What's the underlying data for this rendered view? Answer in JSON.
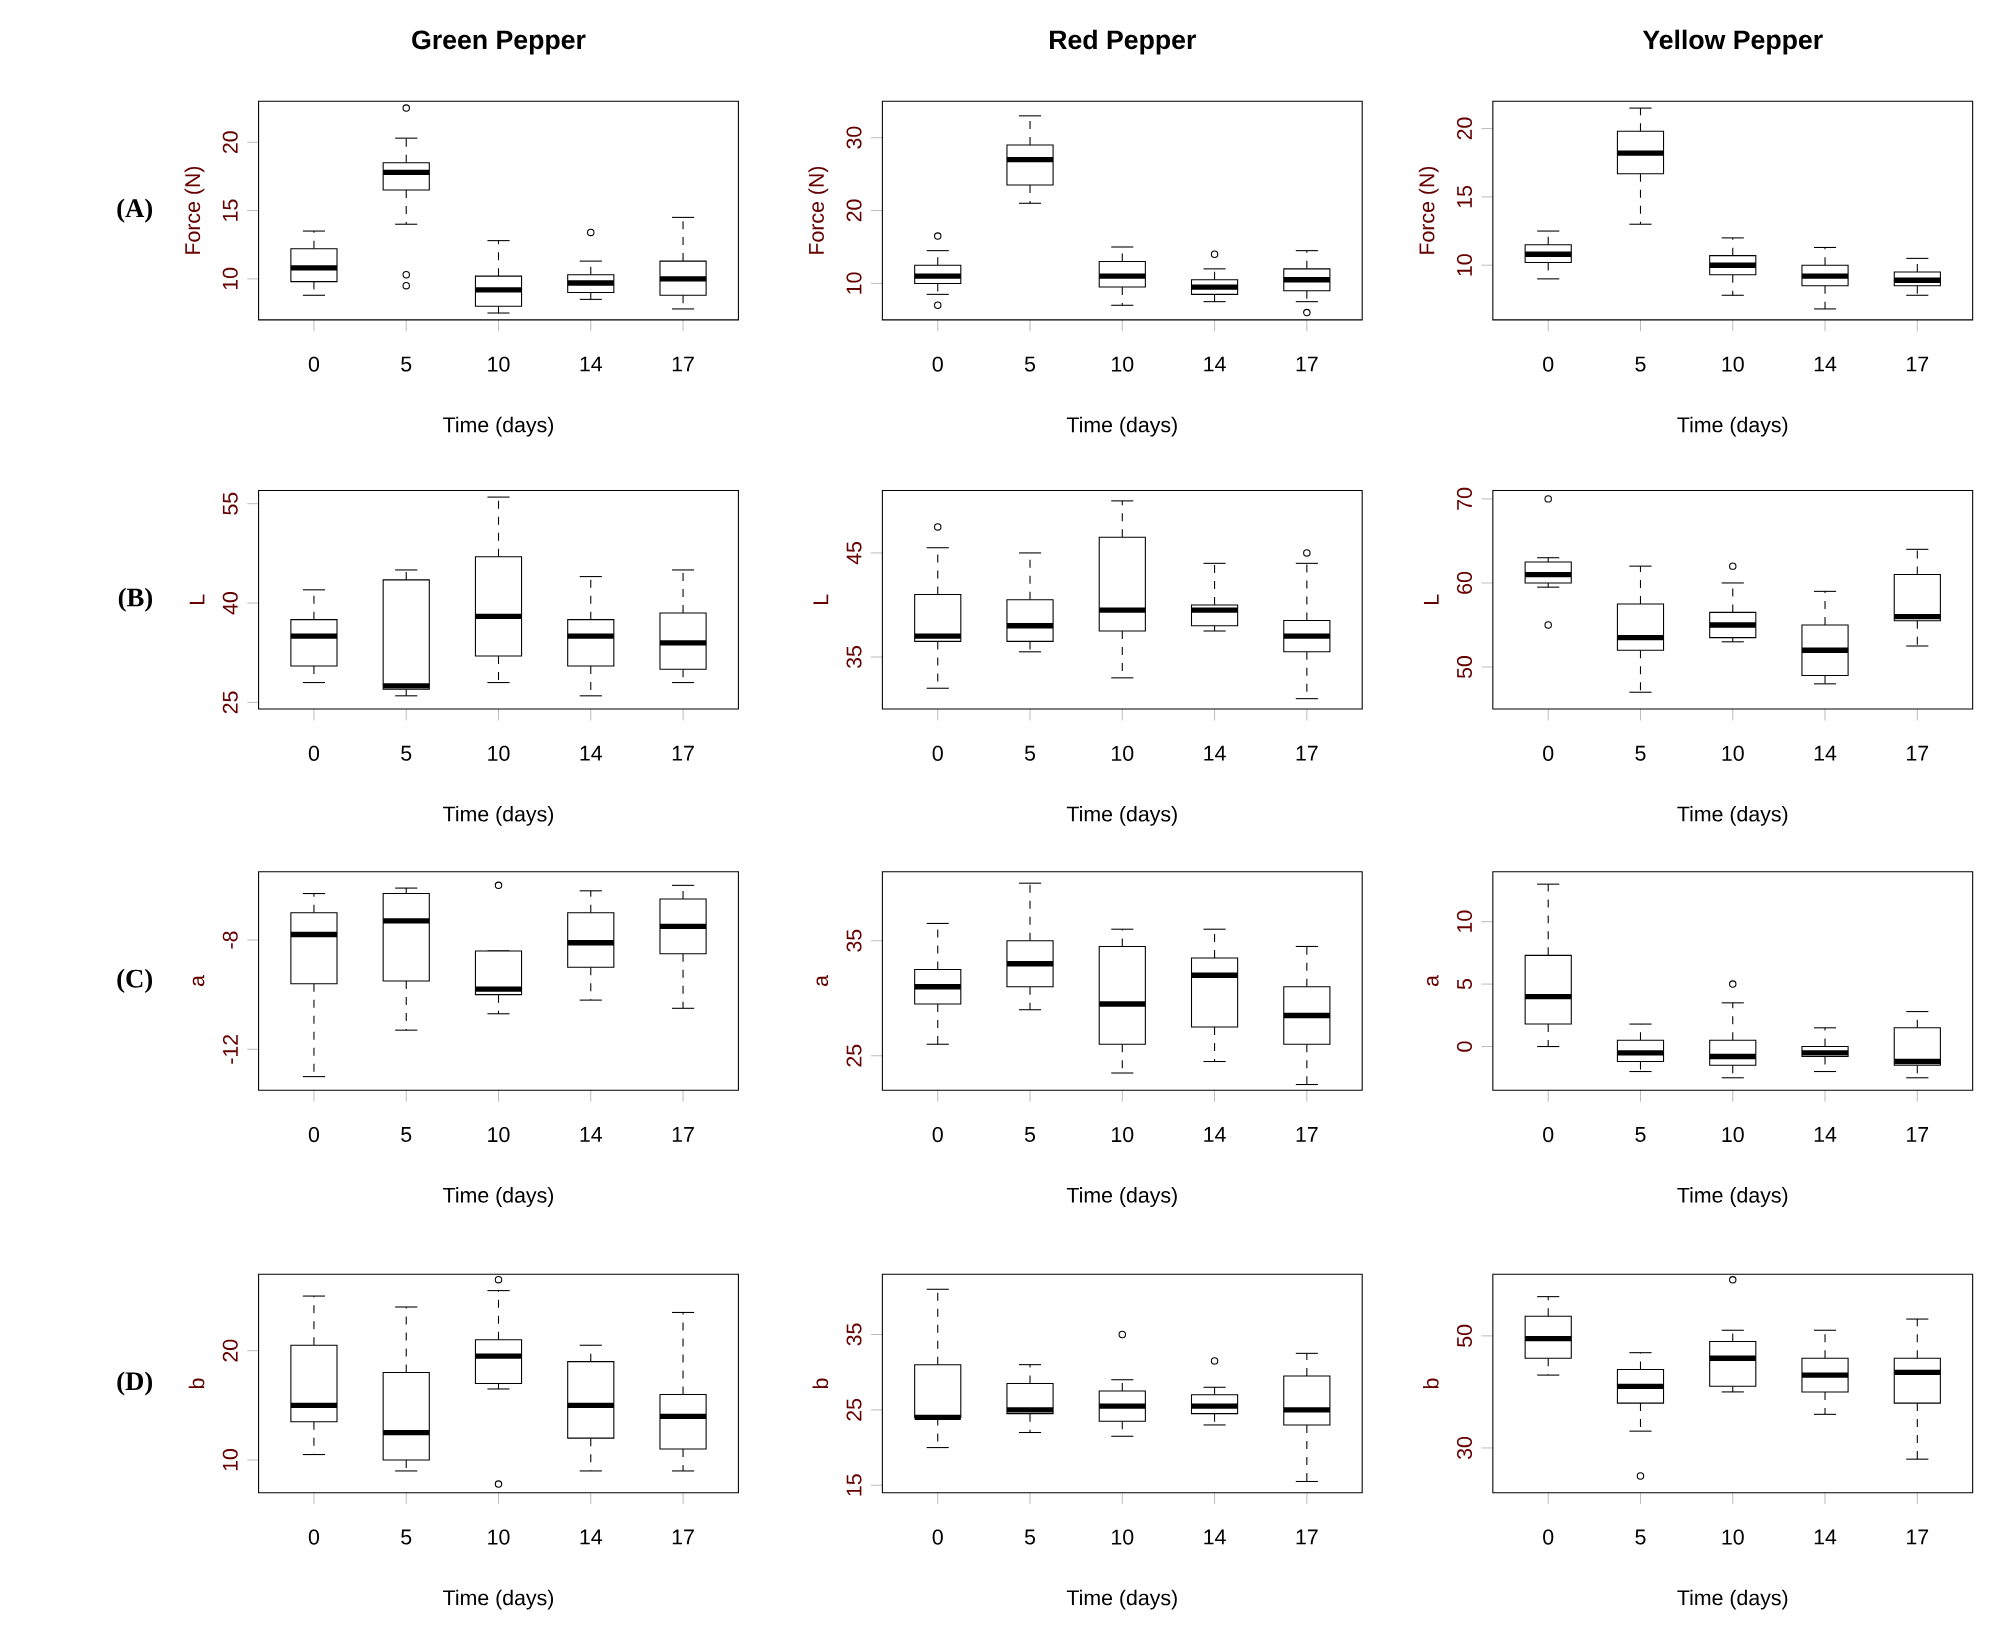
{
  "chart_data": [
    {
      "type": "box",
      "title": "Green Pepper",
      "ylabel": "Force (N)",
      "xlabel": "Time (days)",
      "annotations": [
        "(A)"
      ],
      "categories": [
        "0",
        "5",
        "10",
        "14",
        "17"
      ],
      "ylim": [
        7,
        23
      ],
      "yticks": [
        10,
        15,
        20
      ],
      "boxes": [
        {
          "low": 8.8,
          "q1": 9.8,
          "median": 10.8,
          "q3": 12.2,
          "high": 13.5
        },
        {
          "low": 14,
          "q1": 16.5,
          "median": 17.8,
          "q3": 18.5,
          "high": 20.3,
          "outliers": [
            22.5,
            10.3,
            9.5
          ]
        },
        {
          "low": 7.5,
          "q1": 8,
          "median": 9.2,
          "q3": 10.2,
          "high": 12.8
        },
        {
          "low": 8.5,
          "q1": 9,
          "median": 9.7,
          "q3": 10.3,
          "high": 11.3,
          "outliers": [
            13.4
          ]
        },
        {
          "low": 7.8,
          "q1": 8.8,
          "median": 10,
          "q3": 11.3,
          "high": 14.5
        }
      ]
    },
    {
      "type": "box",
      "title": "Red Pepper",
      "ylabel": "Force (N)",
      "xlabel": "Time (days)",
      "categories": [
        "0",
        "5",
        "10",
        "14",
        "17"
      ],
      "ylim": [
        5,
        35
      ],
      "yticks": [
        10,
        20,
        30
      ],
      "boxes": [
        {
          "low": 8.5,
          "q1": 10,
          "median": 11,
          "q3": 12.5,
          "high": 14.5,
          "outliers": [
            16.5,
            7
          ]
        },
        {
          "low": 21,
          "q1": 23.5,
          "median": 27,
          "q3": 29,
          "high": 33
        },
        {
          "low": 7,
          "q1": 9.5,
          "median": 11,
          "q3": 13,
          "high": 15
        },
        {
          "low": 7.5,
          "q1": 8.5,
          "median": 9.5,
          "q3": 10.5,
          "high": 12,
          "outliers": [
            14
          ]
        },
        {
          "low": 7.5,
          "q1": 9,
          "median": 10.5,
          "q3": 12,
          "high": 14.5,
          "outliers": [
            6
          ]
        }
      ]
    },
    {
      "type": "box",
      "title": "Yellow Pepper",
      "ylabel": "Force (N)",
      "xlabel": "Time (days)",
      "categories": [
        "0",
        "5",
        "10",
        "14",
        "17"
      ],
      "ylim": [
        6,
        22
      ],
      "yticks": [
        10,
        15,
        20
      ],
      "boxes": [
        {
          "low": 9,
          "q1": 10.2,
          "median": 10.8,
          "q3": 11.5,
          "high": 12.5
        },
        {
          "low": 13,
          "q1": 16.7,
          "median": 18.2,
          "q3": 19.8,
          "high": 21.5
        },
        {
          "low": 7.8,
          "q1": 9.3,
          "median": 10,
          "q3": 10.7,
          "high": 12
        },
        {
          "low": 6.8,
          "q1": 8.5,
          "median": 9.2,
          "q3": 10,
          "high": 11.3
        },
        {
          "low": 7.8,
          "q1": 8.5,
          "median": 8.9,
          "q3": 9.5,
          "high": 10.5
        }
      ]
    },
    {
      "type": "box",
      "ylabel": "L",
      "xlabel": "Time (days)",
      "annotations": [
        "(B)"
      ],
      "categories": [
        "0",
        "5",
        "10",
        "14",
        "17"
      ],
      "ylim": [
        24,
        57
      ],
      "yticks": [
        25,
        40,
        55
      ],
      "boxes": [
        {
          "low": 28,
          "q1": 30.5,
          "median": 35,
          "q3": 37.5,
          "high": 42
        },
        {
          "low": 26,
          "q1": 27,
          "median": 27.5,
          "q3": 43.5,
          "high": 45
        },
        {
          "low": 28,
          "q1": 32,
          "median": 38,
          "q3": 47,
          "high": 56
        },
        {
          "low": 26,
          "q1": 30.5,
          "median": 35,
          "q3": 37.5,
          "high": 44
        },
        {
          "low": 28,
          "q1": 30,
          "median": 34,
          "q3": 38.5,
          "high": 45
        }
      ]
    },
    {
      "type": "box",
      "ylabel": "L",
      "xlabel": "Time (days)",
      "categories": [
        "0",
        "5",
        "10",
        "14",
        "17"
      ],
      "ylim": [
        30,
        51
      ],
      "yticks": [
        35,
        45
      ],
      "boxes": [
        {
          "low": 32,
          "q1": 36.5,
          "median": 37,
          "q3": 41,
          "high": 45.5,
          "outliers": [
            47.5
          ]
        },
        {
          "low": 35.5,
          "q1": 36.5,
          "median": 38,
          "q3": 40.5,
          "high": 45
        },
        {
          "low": 33,
          "q1": 37.5,
          "median": 39.5,
          "q3": 46.5,
          "high": 50
        },
        {
          "low": 37.5,
          "q1": 38,
          "median": 39.5,
          "q3": 40,
          "high": 44
        },
        {
          "low": 31,
          "q1": 35.5,
          "median": 37,
          "q3": 38.5,
          "high": 44,
          "outliers": [
            45
          ]
        }
      ]
    },
    {
      "type": "box",
      "ylabel": "L",
      "xlabel": "Time (days)",
      "categories": [
        "0",
        "5",
        "10",
        "14",
        "17"
      ],
      "ylim": [
        45,
        71
      ],
      "yticks": [
        50,
        60,
        70
      ],
      "boxes": [
        {
          "low": 59.5,
          "q1": 60,
          "median": 61,
          "q3": 62.5,
          "high": 63,
          "outliers": [
            70,
            55
          ]
        },
        {
          "low": 47,
          "q1": 52,
          "median": 53.5,
          "q3": 57.5,
          "high": 62
        },
        {
          "low": 53,
          "q1": 53.5,
          "median": 55,
          "q3": 56.5,
          "high": 60,
          "outliers": [
            62
          ]
        },
        {
          "low": 48,
          "q1": 49,
          "median": 52,
          "q3": 55,
          "high": 59
        },
        {
          "low": 52.5,
          "q1": 55.5,
          "median": 56,
          "q3": 61,
          "high": 64
        }
      ]
    },
    {
      "type": "box",
      "ylabel": "a",
      "xlabel": "Time (days)",
      "annotations": [
        "(C)"
      ],
      "categories": [
        "0",
        "5",
        "10",
        "14",
        "17"
      ],
      "ylim": [
        -13.5,
        -5.5
      ],
      "yticks": [
        -12,
        -8
      ],
      "boxes": [
        {
          "low": -13,
          "q1": -9.6,
          "median": -7.8,
          "q3": -7,
          "high": -6.3
        },
        {
          "low": -11.3,
          "q1": -9.5,
          "median": -7.3,
          "q3": -6.3,
          "high": -6.1
        },
        {
          "low": -10.7,
          "q1": -10,
          "median": -9.8,
          "q3": -8.4,
          "high": -8.4,
          "outliers": [
            -6
          ]
        },
        {
          "low": -10.2,
          "q1": -9,
          "median": -8.1,
          "q3": -7,
          "high": -6.2
        },
        {
          "low": -10.5,
          "q1": -8.5,
          "median": -7.5,
          "q3": -6.5,
          "high": -6
        }
      ]
    },
    {
      "type": "box",
      "ylabel": "a",
      "xlabel": "Time (days)",
      "categories": [
        "0",
        "5",
        "10",
        "14",
        "17"
      ],
      "ylim": [
        22,
        41
      ],
      "yticks": [
        25,
        35
      ],
      "boxes": [
        {
          "low": 26,
          "q1": 29.5,
          "median": 31,
          "q3": 32.5,
          "high": 36.5
        },
        {
          "low": 29,
          "q1": 31,
          "median": 33,
          "q3": 35,
          "high": 40
        },
        {
          "low": 23.5,
          "q1": 26,
          "median": 29.5,
          "q3": 34.5,
          "high": 36
        },
        {
          "low": 24.5,
          "q1": 27.5,
          "median": 32,
          "q3": 33.5,
          "high": 36
        },
        {
          "low": 22.5,
          "q1": 26,
          "median": 28.5,
          "q3": 31,
          "high": 34.5
        }
      ]
    },
    {
      "type": "box",
      "ylabel": "a",
      "xlabel": "Time (days)",
      "categories": [
        "0",
        "5",
        "10",
        "14",
        "17"
      ],
      "ylim": [
        -3.5,
        14
      ],
      "yticks": [
        0,
        5,
        10
      ],
      "boxes": [
        {
          "low": 0,
          "q1": 1.8,
          "median": 4,
          "q3": 7.3,
          "high": 13
        },
        {
          "low": -2,
          "q1": -1.2,
          "median": -0.5,
          "q3": 0.5,
          "high": 1.8
        },
        {
          "low": -2.5,
          "q1": -1.5,
          "median": -0.8,
          "q3": 0.5,
          "high": 3.5,
          "outliers": [
            5
          ]
        },
        {
          "low": -2,
          "q1": -0.8,
          "median": -0.5,
          "q3": 0,
          "high": 1.5
        },
        {
          "low": -2.5,
          "q1": -1.5,
          "median": -1.2,
          "q3": 1.5,
          "high": 2.8
        }
      ]
    },
    {
      "type": "box",
      "ylabel": "b",
      "xlabel": "Time (days)",
      "annotations": [
        "(D)"
      ],
      "categories": [
        "0",
        "5",
        "10",
        "14",
        "17"
      ],
      "ylim": [
        7,
        27
      ],
      "yticks": [
        10,
        20
      ],
      "boxes": [
        {
          "low": 10.5,
          "q1": 13.5,
          "median": 15,
          "q3": 20.5,
          "high": 25
        },
        {
          "low": 9,
          "q1": 10,
          "median": 12.5,
          "q3": 18,
          "high": 24
        },
        {
          "low": 16.5,
          "q1": 17,
          "median": 19.5,
          "q3": 21,
          "high": 25.5,
          "outliers": [
            26.5,
            7.8
          ]
        },
        {
          "low": 9,
          "q1": 12,
          "median": 15,
          "q3": 19,
          "high": 20.5
        },
        {
          "low": 9,
          "q1": 11,
          "median": 14,
          "q3": 16,
          "high": 23.5
        }
      ]
    },
    {
      "type": "box",
      "ylabel": "b",
      "xlabel": "Time (days)",
      "categories": [
        "0",
        "5",
        "10",
        "14",
        "17"
      ],
      "ylim": [
        14,
        43
      ],
      "yticks": [
        15,
        25,
        35
      ],
      "boxes": [
        {
          "low": 20,
          "q1": 24,
          "median": 24,
          "q3": 31,
          "high": 41
        },
        {
          "low": 22,
          "q1": 24.5,
          "median": 25,
          "q3": 28.5,
          "high": 31
        },
        {
          "low": 21.5,
          "q1": 23.5,
          "median": 25.5,
          "q3": 27.5,
          "high": 29,
          "outliers": [
            35
          ]
        },
        {
          "low": 23,
          "q1": 24.5,
          "median": 25.5,
          "q3": 27,
          "high": 28,
          "outliers": [
            31.5
          ]
        },
        {
          "low": 15.5,
          "q1": 23,
          "median": 25,
          "q3": 29.5,
          "high": 32.5
        }
      ]
    },
    {
      "type": "box",
      "ylabel": "b",
      "xlabel": "Time (days)",
      "categories": [
        "0",
        "5",
        "10",
        "14",
        "17"
      ],
      "ylim": [
        22,
        61
      ],
      "yticks": [
        30,
        50
      ],
      "boxes": [
        {
          "low": 43,
          "q1": 46,
          "median": 49.5,
          "q3": 53.5,
          "high": 57
        },
        {
          "low": 33,
          "q1": 38,
          "median": 41,
          "q3": 44,
          "high": 47,
          "outliers": [
            25
          ]
        },
        {
          "low": 40,
          "q1": 41,
          "median": 46,
          "q3": 49,
          "high": 51,
          "outliers": [
            60
          ]
        },
        {
          "low": 36,
          "q1": 40,
          "median": 43,
          "q3": 46,
          "high": 51
        },
        {
          "low": 28,
          "q1": 38,
          "median": 43.5,
          "q3": 46,
          "high": 53
        }
      ]
    }
  ]
}
